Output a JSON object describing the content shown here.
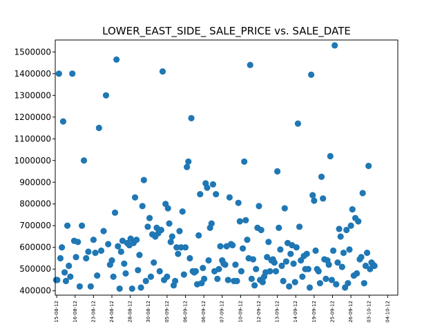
{
  "chart_data": {
    "type": "scatter",
    "title": "LOWER_EAST_SIDE_ SALE_PRICE vs. SALE_DATE",
    "xlabel": "",
    "ylabel": "",
    "marker_color": "#1f77b4",
    "ylim": [
      380000,
      1555000
    ],
    "yticks": [
      400000,
      500000,
      600000,
      700000,
      800000,
      900000,
      1000000,
      1100000,
      1200000,
      1300000,
      1400000,
      1500000
    ],
    "ytick_labels": [
      "400000",
      "500000",
      "600000",
      "700000",
      "800000",
      "900000",
      "1000000",
      "1100000",
      "1200000",
      "1300000",
      "1400000",
      "1500000"
    ],
    "xlim": [
      -0.08,
      18.55
    ],
    "xticks": [
      0,
      1,
      2,
      3,
      4,
      5,
      6,
      7,
      8,
      9,
      10,
      11,
      12,
      13,
      14,
      15,
      16,
      17,
      18
    ],
    "xtick_labels": [
      "15-08-12",
      "16-08-12",
      "23-08-12",
      "24-08-12",
      "28-08-12",
      "30-08-12",
      "05-09-12",
      "06-09-12",
      "06-09-12",
      "07-09-12",
      "10-09-12",
      "12-09-12",
      "13-09-12",
      "14-09-12",
      "19-09-12",
      "25-09-12",
      "26-09-12",
      "03-10-12",
      "04-10-12"
    ],
    "points": [
      {
        "x": -0.03,
        "y": 450000
      },
      {
        "x": 0.03,
        "y": 450000
      },
      {
        "x": 0.12,
        "y": 1400000
      },
      {
        "x": 0.2,
        "y": 550000
      },
      {
        "x": 0.28,
        "y": 600000
      },
      {
        "x": 0.35,
        "y": 1180000
      },
      {
        "x": 0.43,
        "y": 485000
      },
      {
        "x": 0.5,
        "y": 445000
      },
      {
        "x": 0.58,
        "y": 700000
      },
      {
        "x": 0.66,
        "y": 515000
      },
      {
        "x": 0.74,
        "y": 465000
      },
      {
        "x": 0.85,
        "y": 1400000
      },
      {
        "x": 0.95,
        "y": 630000
      },
      {
        "x": 1.05,
        "y": 555000
      },
      {
        "x": 1.15,
        "y": 625000
      },
      {
        "x": 1.25,
        "y": 420000
      },
      {
        "x": 1.37,
        "y": 700000
      },
      {
        "x": 1.48,
        "y": 1000000
      },
      {
        "x": 1.6,
        "y": 550000
      },
      {
        "x": 1.72,
        "y": 580000
      },
      {
        "x": 1.85,
        "y": 420000
      },
      {
        "x": 2.0,
        "y": 635000
      },
      {
        "x": 2.1,
        "y": 575000
      },
      {
        "x": 2.2,
        "y": 470000
      },
      {
        "x": 2.3,
        "y": 1150000
      },
      {
        "x": 2.42,
        "y": 585000
      },
      {
        "x": 2.55,
        "y": 675000
      },
      {
        "x": 2.68,
        "y": 1300000
      },
      {
        "x": 2.8,
        "y": 615000
      },
      {
        "x": 2.9,
        "y": 520000
      },
      {
        "x": 3.0,
        "y": 540000
      },
      {
        "x": 3.08,
        "y": 465000
      },
      {
        "x": 3.17,
        "y": 760000
      },
      {
        "x": 3.25,
        "y": 1465000
      },
      {
        "x": 3.33,
        "y": 605000
      },
      {
        "x": 3.42,
        "y": 410000
      },
      {
        "x": 3.5,
        "y": 580000
      },
      {
        "x": 3.58,
        "y": 630000
      },
      {
        "x": 3.67,
        "y": 525000
      },
      {
        "x": 3.75,
        "y": 480000
      },
      {
        "x": 3.83,
        "y": 620000
      },
      {
        "x": 3.95,
        "y": 610000
      },
      {
        "x": 4.02,
        "y": 640000
      },
      {
        "x": 4.1,
        "y": 410000
      },
      {
        "x": 4.18,
        "y": 620000
      },
      {
        "x": 4.26,
        "y": 830000
      },
      {
        "x": 4.34,
        "y": 635000
      },
      {
        "x": 4.42,
        "y": 495000
      },
      {
        "x": 4.5,
        "y": 565000
      },
      {
        "x": 4.58,
        "y": 415000
      },
      {
        "x": 4.66,
        "y": 790000
      },
      {
        "x": 4.74,
        "y": 910000
      },
      {
        "x": 4.85,
        "y": 445000
      },
      {
        "x": 4.95,
        "y": 695000
      },
      {
        "x": 5.05,
        "y": 735000
      },
      {
        "x": 5.12,
        "y": 465000
      },
      {
        "x": 5.2,
        "y": 660000
      },
      {
        "x": 5.28,
        "y": 530000
      },
      {
        "x": 5.36,
        "y": 650000
      },
      {
        "x": 5.44,
        "y": 690000
      },
      {
        "x": 5.52,
        "y": 665000
      },
      {
        "x": 5.6,
        "y": 490000
      },
      {
        "x": 5.68,
        "y": 680000
      },
      {
        "x": 5.76,
        "y": 1410000
      },
      {
        "x": 5.84,
        "y": 450000
      },
      {
        "x": 5.92,
        "y": 800000
      },
      {
        "x": 6.0,
        "y": 465000
      },
      {
        "x": 6.05,
        "y": 780000
      },
      {
        "x": 6.12,
        "y": 710000
      },
      {
        "x": 6.2,
        "y": 625000
      },
      {
        "x": 6.28,
        "y": 650000
      },
      {
        "x": 6.36,
        "y": 425000
      },
      {
        "x": 6.44,
        "y": 445000
      },
      {
        "x": 6.52,
        "y": 600000
      },
      {
        "x": 6.6,
        "y": 570000
      },
      {
        "x": 6.68,
        "y": 675000
      },
      {
        "x": 6.76,
        "y": 600000
      },
      {
        "x": 6.84,
        "y": 765000
      },
      {
        "x": 6.92,
        "y": 475000
      },
      {
        "x": 7.0,
        "y": 600000
      },
      {
        "x": 7.08,
        "y": 970000
      },
      {
        "x": 7.16,
        "y": 995000
      },
      {
        "x": 7.24,
        "y": 550000
      },
      {
        "x": 7.32,
        "y": 1195000
      },
      {
        "x": 7.4,
        "y": 490000
      },
      {
        "x": 7.48,
        "y": 485000
      },
      {
        "x": 7.56,
        "y": 490000
      },
      {
        "x": 7.64,
        "y": 430000
      },
      {
        "x": 7.72,
        "y": 655000
      },
      {
        "x": 7.8,
        "y": 845000
      },
      {
        "x": 7.88,
        "y": 435000
      },
      {
        "x": 7.95,
        "y": 505000
      },
      {
        "x": 8.02,
        "y": 455000
      },
      {
        "x": 8.1,
        "y": 895000
      },
      {
        "x": 8.18,
        "y": 875000
      },
      {
        "x": 8.26,
        "y": 540000
      },
      {
        "x": 8.34,
        "y": 690000
      },
      {
        "x": 8.42,
        "y": 710000
      },
      {
        "x": 8.5,
        "y": 890000
      },
      {
        "x": 8.58,
        "y": 490000
      },
      {
        "x": 8.66,
        "y": 845000
      },
      {
        "x": 8.74,
        "y": 455000
      },
      {
        "x": 8.82,
        "y": 500000
      },
      {
        "x": 8.9,
        "y": 605000
      },
      {
        "x": 9.0,
        "y": 540000
      },
      {
        "x": 9.08,
        "y": 525000
      },
      {
        "x": 9.16,
        "y": 520000
      },
      {
        "x": 9.24,
        "y": 605000
      },
      {
        "x": 9.32,
        "y": 450000
      },
      {
        "x": 9.4,
        "y": 830000
      },
      {
        "x": 9.48,
        "y": 615000
      },
      {
        "x": 9.56,
        "y": 610000
      },
      {
        "x": 9.64,
        "y": 445000
      },
      {
        "x": 9.72,
        "y": 520000
      },
      {
        "x": 9.8,
        "y": 445000
      },
      {
        "x": 9.88,
        "y": 805000
      },
      {
        "x": 9.96,
        "y": 720000
      },
      {
        "x": 10.04,
        "y": 490000
      },
      {
        "x": 10.12,
        "y": 595000
      },
      {
        "x": 10.2,
        "y": 995000
      },
      {
        "x": 10.28,
        "y": 725000
      },
      {
        "x": 10.36,
        "y": 635000
      },
      {
        "x": 10.44,
        "y": 550000
      },
      {
        "x": 10.52,
        "y": 1440000
      },
      {
        "x": 10.6,
        "y": 455000
      },
      {
        "x": 10.68,
        "y": 545000
      },
      {
        "x": 10.76,
        "y": 425000
      },
      {
        "x": 10.84,
        "y": 500000
      },
      {
        "x": 10.92,
        "y": 690000
      },
      {
        "x": 11.0,
        "y": 790000
      },
      {
        "x": 11.06,
        "y": 450000
      },
      {
        "x": 11.12,
        "y": 680000
      },
      {
        "x": 11.2,
        "y": 440000
      },
      {
        "x": 11.28,
        "y": 465000
      },
      {
        "x": 11.36,
        "y": 485000
      },
      {
        "x": 11.44,
        "y": 555000
      },
      {
        "x": 11.52,
        "y": 625000
      },
      {
        "x": 11.6,
        "y": 490000
      },
      {
        "x": 11.68,
        "y": 540000
      },
      {
        "x": 11.76,
        "y": 545000
      },
      {
        "x": 11.84,
        "y": 530000
      },
      {
        "x": 11.92,
        "y": 490000
      },
      {
        "x": 12.0,
        "y": 950000
      },
      {
        "x": 12.08,
        "y": 690000
      },
      {
        "x": 12.16,
        "y": 590000
      },
      {
        "x": 12.24,
        "y": 515000
      },
      {
        "x": 12.32,
        "y": 445000
      },
      {
        "x": 12.4,
        "y": 780000
      },
      {
        "x": 12.48,
        "y": 535000
      },
      {
        "x": 12.56,
        "y": 620000
      },
      {
        "x": 12.64,
        "y": 420000
      },
      {
        "x": 12.72,
        "y": 570000
      },
      {
        "x": 12.8,
        "y": 610000
      },
      {
        "x": 12.88,
        "y": 525000
      },
      {
        "x": 12.96,
        "y": 440000
      },
      {
        "x": 13.04,
        "y": 600000
      },
      {
        "x": 13.12,
        "y": 1170000
      },
      {
        "x": 13.2,
        "y": 695000
      },
      {
        "x": 13.28,
        "y": 540000
      },
      {
        "x": 13.36,
        "y": 465000
      },
      {
        "x": 13.44,
        "y": 560000
      },
      {
        "x": 13.52,
        "y": 500000
      },
      {
        "x": 13.6,
        "y": 570000
      },
      {
        "x": 13.68,
        "y": 500000
      },
      {
        "x": 13.76,
        "y": 415000
      },
      {
        "x": 13.84,
        "y": 1395000
      },
      {
        "x": 13.92,
        "y": 840000
      },
      {
        "x": 14.0,
        "y": 815000
      },
      {
        "x": 14.08,
        "y": 585000
      },
      {
        "x": 14.16,
        "y": 500000
      },
      {
        "x": 14.24,
        "y": 490000
      },
      {
        "x": 14.32,
        "y": 435000
      },
      {
        "x": 14.4,
        "y": 925000
      },
      {
        "x": 14.48,
        "y": 825000
      },
      {
        "x": 14.56,
        "y": 545000
      },
      {
        "x": 14.64,
        "y": 455000
      },
      {
        "x": 14.72,
        "y": 540000
      },
      {
        "x": 14.8,
        "y": 520000
      },
      {
        "x": 14.88,
        "y": 1020000
      },
      {
        "x": 14.96,
        "y": 450000
      },
      {
        "x": 15.04,
        "y": 585000
      },
      {
        "x": 15.12,
        "y": 1530000
      },
      {
        "x": 15.2,
        "y": 430000
      },
      {
        "x": 15.28,
        "y": 530000
      },
      {
        "x": 15.36,
        "y": 685000
      },
      {
        "x": 15.44,
        "y": 650000
      },
      {
        "x": 15.52,
        "y": 510000
      },
      {
        "x": 15.6,
        "y": 575000
      },
      {
        "x": 15.68,
        "y": 415000
      },
      {
        "x": 15.76,
        "y": 680000
      },
      {
        "x": 15.84,
        "y": 435000
      },
      {
        "x": 15.92,
        "y": 590000
      },
      {
        "x": 16.0,
        "y": 700000
      },
      {
        "x": 16.08,
        "y": 775000
      },
      {
        "x": 16.16,
        "y": 470000
      },
      {
        "x": 16.24,
        "y": 735000
      },
      {
        "x": 16.32,
        "y": 480000
      },
      {
        "x": 16.4,
        "y": 720000
      },
      {
        "x": 16.48,
        "y": 545000
      },
      {
        "x": 16.56,
        "y": 555000
      },
      {
        "x": 16.64,
        "y": 850000
      },
      {
        "x": 16.72,
        "y": 435000
      },
      {
        "x": 16.8,
        "y": 515000
      },
      {
        "x": 16.88,
        "y": 575000
      },
      {
        "x": 16.96,
        "y": 975000
      },
      {
        "x": 17.04,
        "y": 500000
      },
      {
        "x": 17.12,
        "y": 530000
      },
      {
        "x": 17.2,
        "y": 520000
      },
      {
        "x": 17.28,
        "y": 515000
      }
    ]
  }
}
